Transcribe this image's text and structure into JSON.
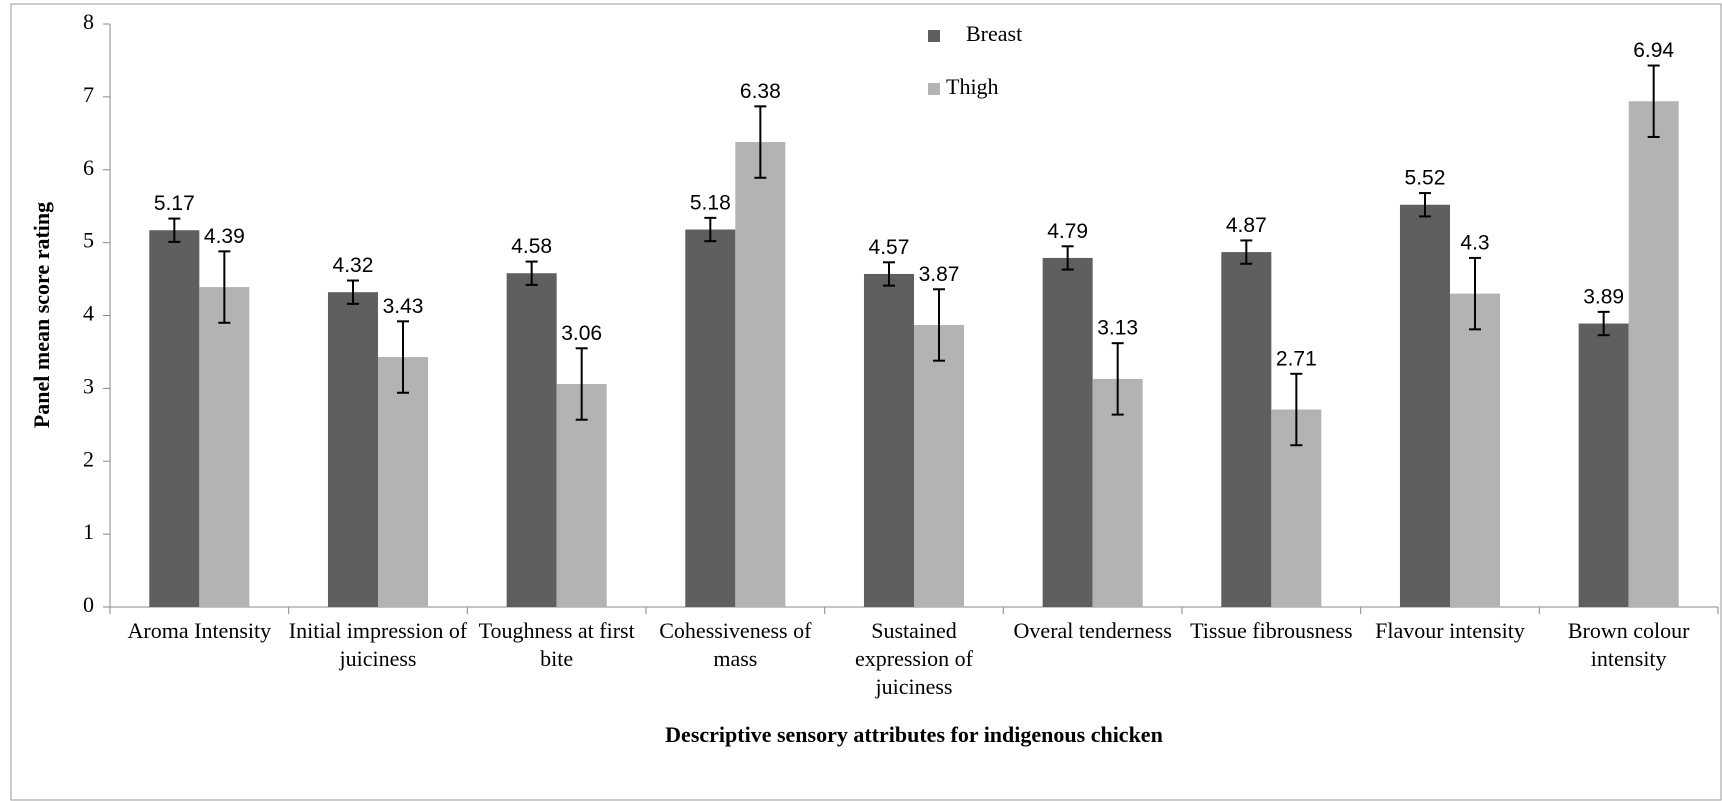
{
  "chart_data": {
    "type": "bar",
    "x_label": "Descriptive sensory attributes for indigenous chicken",
    "y_label": "Panel mean score rating",
    "categories": [
      "Aroma Intensity",
      "Initial impression of juiciness",
      "Toughness at first bite",
      "Cohessiveness of mass",
      "Sustained expression of juiciness",
      "Overal tenderness",
      "Tissue fibrousness",
      "Flavour intensity",
      "Brown colour intensity"
    ],
    "series": [
      {
        "name": "Breast",
        "color": "#5f5f5f",
        "values": [
          5.17,
          4.32,
          4.58,
          5.18,
          4.57,
          4.79,
          4.87,
          5.52,
          3.89
        ],
        "errors": [
          0.16,
          0.16,
          0.16,
          0.16,
          0.16,
          0.16,
          0.16,
          0.16,
          0.16
        ]
      },
      {
        "name": "Thigh",
        "color": "#b3b3b3",
        "values": [
          4.39,
          3.43,
          3.06,
          6.38,
          3.87,
          3.13,
          2.71,
          4.3,
          6.94
        ],
        "errors": [
          0.49,
          0.49,
          0.49,
          0.49,
          0.49,
          0.49,
          0.49,
          0.49,
          0.49
        ]
      }
    ],
    "ylim": [
      0,
      8
    ],
    "yticks": [
      0,
      1,
      2,
      3,
      4,
      5,
      6,
      7,
      8
    ],
    "legend": "top-center"
  }
}
